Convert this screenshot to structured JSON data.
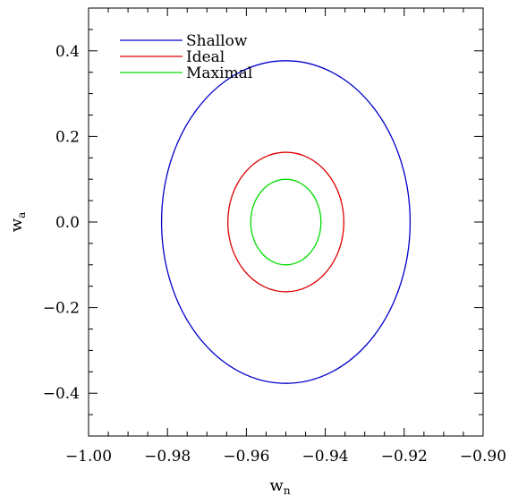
{
  "chart_data": {
    "type": "line",
    "xlabel": "w",
    "xlabel_sub": "n",
    "ylabel": "w",
    "ylabel_sub": "a",
    "xlim": [
      -1.0,
      -0.9
    ],
    "ylim": [
      -0.5,
      0.5
    ],
    "xticks": [
      -1.0,
      -0.98,
      -0.96,
      -0.94,
      -0.92,
      -0.9
    ],
    "xtick_labels": [
      "−1.00",
      "−0.98",
      "−0.96",
      "−0.94",
      "−0.92",
      "−0.90"
    ],
    "yticks": [
      -0.4,
      -0.2,
      0.0,
      0.2,
      0.4
    ],
    "ytick_labels": [
      "−0.4",
      "−0.2",
      "0.0",
      "0.2",
      "0.4"
    ],
    "grid": false,
    "legend": "top-left",
    "series": [
      {
        "name": "Shallow",
        "color": "#0000cc",
        "center": [
          -0.95,
          0.0
        ],
        "semi_x": 0.0315,
        "semi_y": 0.377
      },
      {
        "name": "Ideal",
        "color": "#dd0000",
        "center": [
          -0.95,
          0.0
        ],
        "semi_x": 0.0147,
        "semi_y": 0.163
      },
      {
        "name": "Maximal",
        "color": "#00dd00",
        "center": [
          -0.95,
          0.0
        ],
        "semi_x": 0.0089,
        "semi_y": 0.1
      }
    ]
  }
}
